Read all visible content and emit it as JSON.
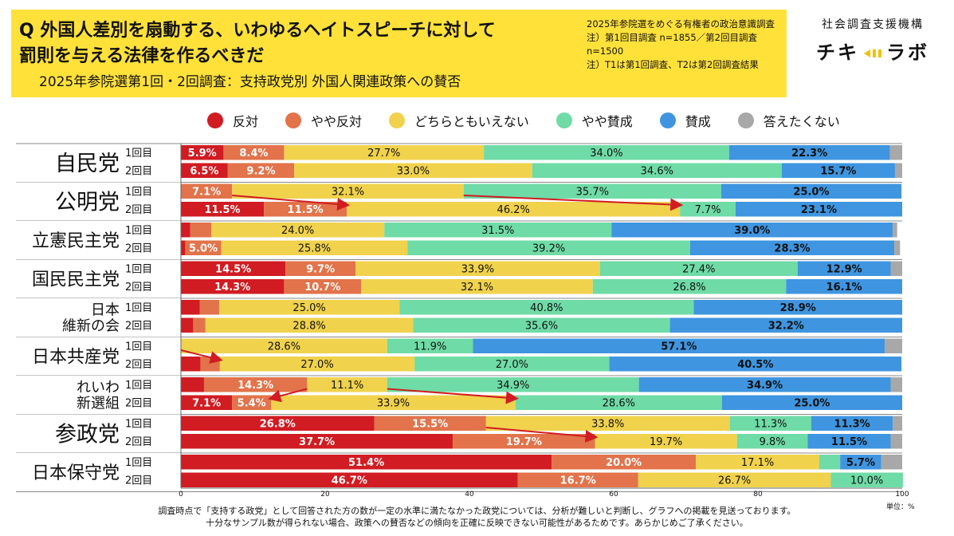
{
  "header": {
    "question_line1": "Q 外国人差別を扇動する、いわゆるヘイトスピーチに対して",
    "question_line2": "罰則を与える法律を作るべきだ",
    "subtitle": "2025年参院選第1回・2回調査：支持政党別 外国人関連政策への賛否",
    "notes": [
      "2025年参院選をめぐる有権者の政治意識調査",
      "注）第1回目調査 n=1855／第2回目調査",
      "n=1500",
      "注）T1は第1回調査、T2は第2回調査結果"
    ]
  },
  "brand": {
    "org": "社会調査支援機構",
    "logo_left": "チキ",
    "logo_right": "ラボ"
  },
  "footer": {
    "line1": "調査時点で「支持する政党」として回答された方の数が一定の水準に満たなかった政党については、分析が難しいと判断し、グラフへの掲載を見送っております。",
    "line2": "十分なサンプル数が得られない場合、政策への賛否などの傾向を正確に反映できない可能性があるためです。あらかじめご了承ください。",
    "unit": "単位：%"
  },
  "chart_data": {
    "type": "bar",
    "orientation": "horizontal",
    "stacked": true,
    "xlim": [
      0,
      100
    ],
    "xticks": [
      "0",
      "20",
      "40",
      "60",
      "80",
      "100"
    ],
    "categories_legend": [
      "反対",
      "やや反対",
      "どちらともいえない",
      "やや賛成",
      "賛成",
      "答えたくない"
    ],
    "colors": [
      "#d01c22",
      "#e2734a",
      "#f0d24c",
      "#6fdba6",
      "#3f95e0",
      "#a8a8a8"
    ],
    "round_labels": [
      "1回目",
      "2回目"
    ],
    "parties": [
      {
        "name": "自民党",
        "rows": [
          {
            "round": "1回目",
            "values": [
              5.9,
              8.4,
              27.7,
              34.0,
              22.3,
              1.7
            ],
            "labels": [
              "5.9%",
              "8.4%",
              "27.7%",
              "34.0%",
              "22.3%",
              ""
            ]
          },
          {
            "round": "2回目",
            "values": [
              6.5,
              9.2,
              33.0,
              34.6,
              15.7,
              1.0
            ],
            "labels": [
              "6.5%",
              "9.2%",
              "33.0%",
              "34.6%",
              "15.7%",
              ""
            ]
          }
        ]
      },
      {
        "name": "公明党",
        "rows": [
          {
            "round": "1回目",
            "values": [
              0,
              7.1,
              32.1,
              35.7,
              25.0,
              0
            ],
            "labels": [
              "",
              "7.1%",
              "32.1%",
              "35.7%",
              "25.0%",
              ""
            ]
          },
          {
            "round": "2回目",
            "values": [
              11.5,
              11.5,
              46.2,
              7.7,
              23.1,
              0
            ],
            "labels": [
              "11.5%",
              "11.5%",
              "46.2%",
              "7.7%",
              "23.1%",
              ""
            ]
          }
        ]
      },
      {
        "name": "立憲民主党",
        "rows": [
          {
            "round": "1回目",
            "values": [
              1.3,
              2.9,
              24.0,
              31.5,
              39.0,
              0.6
            ],
            "labels": [
              "",
              "",
              "24.0%",
              "31.5%",
              "39.0%",
              ""
            ]
          },
          {
            "round": "2回目",
            "values": [
              0.6,
              5.0,
              25.8,
              39.2,
              28.3,
              0.8
            ],
            "labels": [
              "",
              "5.0%",
              "25.8%",
              "39.2%",
              "28.3%",
              ""
            ]
          }
        ]
      },
      {
        "name": "国民民主党",
        "rows": [
          {
            "round": "1回目",
            "values": [
              14.5,
              9.7,
              33.9,
              27.4,
              12.9,
              1.6
            ],
            "labels": [
              "14.5%",
              "9.7%",
              "33.9%",
              "27.4%",
              "12.9%",
              ""
            ]
          },
          {
            "round": "2回目",
            "values": [
              14.3,
              10.7,
              32.1,
              26.8,
              16.1,
              0
            ],
            "labels": [
              "14.3%",
              "10.7%",
              "32.1%",
              "26.8%",
              "16.1%",
              ""
            ]
          }
        ]
      },
      {
        "name": "日本 維新の会",
        "rows": [
          {
            "round": "1回目",
            "values": [
              2.6,
              2.7,
              25.0,
              40.8,
              28.9,
              0
            ],
            "labels": [
              "",
              "",
              "25.0%",
              "40.8%",
              "28.9%",
              ""
            ]
          },
          {
            "round": "2回目",
            "values": [
              1.7,
              1.7,
              28.8,
              35.6,
              32.2,
              0
            ],
            "labels": [
              "",
              "",
              "28.8%",
              "35.6%",
              "32.2%",
              ""
            ]
          }
        ]
      },
      {
        "name": "日本共産党",
        "rows": [
          {
            "round": "1回目",
            "values": [
              0,
              0,
              28.6,
              11.9,
              57.1,
              2.4
            ],
            "labels": [
              "",
              "",
              "28.6%",
              "11.9%",
              "57.1%",
              ""
            ]
          },
          {
            "round": "2回目",
            "values": [
              2.7,
              2.7,
              27.0,
              27.0,
              40.5,
              0
            ],
            "labels": [
              "",
              "",
              "27.0%",
              "27.0%",
              "40.5%",
              ""
            ]
          }
        ]
      },
      {
        "name": "れいわ 新選組",
        "rows": [
          {
            "round": "1回目",
            "values": [
              3.2,
              14.3,
              11.1,
              34.9,
              34.9,
              1.6
            ],
            "labels": [
              "",
              "14.3%",
              "11.1%",
              "34.9%",
              "34.9%",
              ""
            ]
          },
          {
            "round": "2回目",
            "values": [
              7.1,
              5.4,
              33.9,
              28.6,
              25.0,
              0
            ],
            "labels": [
              "7.1%",
              "5.4%",
              "33.9%",
              "28.6%",
              "25.0%",
              ""
            ]
          }
        ]
      },
      {
        "name": "参政党",
        "rows": [
          {
            "round": "1回目",
            "values": [
              26.8,
              15.5,
              33.8,
              11.3,
              11.3,
              1.3
            ],
            "labels": [
              "26.8%",
              "15.5%",
              "33.8%",
              "11.3%",
              "11.3%",
              ""
            ]
          },
          {
            "round": "2回目",
            "values": [
              37.7,
              19.7,
              19.7,
              9.8,
              11.5,
              1.6
            ],
            "labels": [
              "37.7%",
              "19.7%",
              "19.7%",
              "9.8%",
              "11.5%",
              ""
            ]
          }
        ]
      },
      {
        "name": "日本保守党",
        "rows": [
          {
            "round": "1回目",
            "values": [
              51.4,
              20.0,
              17.1,
              2.9,
              5.7,
              2.9
            ],
            "labels": [
              "51.4%",
              "20.0%",
              "17.1%",
              "",
              "5.7%",
              ""
            ]
          },
          {
            "round": "2回目",
            "values": [
              46.7,
              16.7,
              26.7,
              10.0,
              0,
              0
            ],
            "labels": [
              "46.7%",
              "16.7%",
              "26.7%",
              "10.0%",
              "",
              ""
            ]
          }
        ]
      }
    ],
    "arrows": [
      {
        "party": "公明党",
        "from": {
          "row": "1回目",
          "x": 7.1
        },
        "to": {
          "row": "2回目",
          "x": 23.0
        }
      },
      {
        "party": "公明党",
        "from": {
          "row": "1回目",
          "x": 39.2
        },
        "to": {
          "row": "2回目",
          "x": 69.2
        }
      },
      {
        "party": "日本共産党",
        "from": {
          "row": "1回目",
          "x": 0
        },
        "to": {
          "row": "2回目",
          "x": 5.4
        }
      },
      {
        "party": "れいわ 新選組",
        "from": {
          "row": "1回目",
          "x": 17.5
        },
        "to": {
          "row": "2回目",
          "x": 12.5
        }
      },
      {
        "party": "れいわ 新選組",
        "from": {
          "row": "1回目",
          "x": 28.6
        },
        "to": {
          "row": "2回目",
          "x": 46.4
        }
      },
      {
        "party": "参政党",
        "from": {
          "row": "1回目",
          "x": 42.3
        },
        "to": {
          "row": "2回目",
          "x": 57.4
        }
      }
    ]
  }
}
